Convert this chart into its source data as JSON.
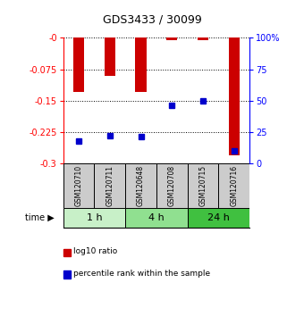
{
  "title": "GDS3433 / 30099",
  "samples": [
    "GSM120710",
    "GSM120711",
    "GSM120648",
    "GSM120708",
    "GSM120715",
    "GSM120716"
  ],
  "log10_ratio": [
    -0.13,
    -0.09,
    -0.13,
    -0.005,
    -0.005,
    -0.28
  ],
  "percentile_rank": [
    18,
    22,
    21,
    46,
    50,
    10
  ],
  "ylim_left": [
    -0.3,
    0
  ],
  "ylim_right": [
    0,
    100
  ],
  "yticks_left": [
    0,
    -0.075,
    -0.15,
    -0.225,
    -0.3
  ],
  "yticks_right": [
    0,
    25,
    50,
    75,
    100
  ],
  "ytick_labels_left": [
    "-0",
    "-0.075",
    "-0.15",
    "-0.225",
    "-0.3"
  ],
  "ytick_labels_right": [
    "0",
    "25",
    "50",
    "75",
    "100%"
  ],
  "groups": [
    {
      "label": "1 h",
      "indices": [
        0,
        1
      ],
      "color": "#c8f0c8"
    },
    {
      "label": "4 h",
      "indices": [
        2,
        3
      ],
      "color": "#90e090"
    },
    {
      "label": "24 h",
      "indices": [
        4,
        5
      ],
      "color": "#40c040"
    }
  ],
  "bar_color": "#cc0000",
  "dot_color": "#0000cc",
  "bar_width": 0.35,
  "background_color": "#ffffff",
  "plot_bg_color": "#ffffff",
  "sample_box_color": "#cccccc",
  "legend_bar_label": "log10 ratio",
  "legend_dot_label": "percentile rank within the sample",
  "time_label": "time"
}
